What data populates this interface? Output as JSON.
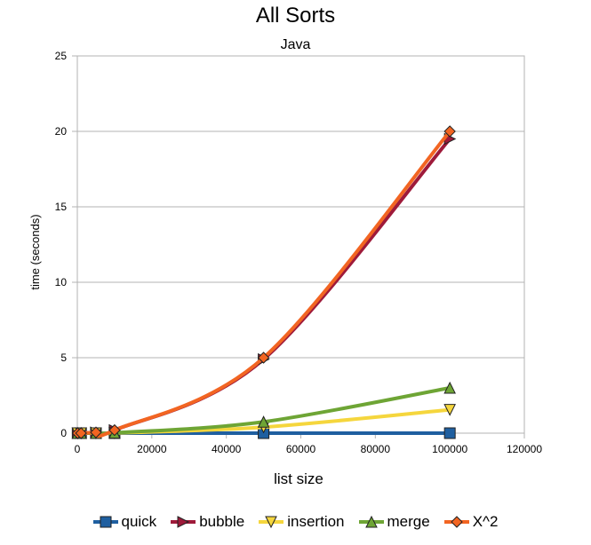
{
  "chart_data": {
    "type": "line",
    "title": "All Sorts",
    "subtitle": "Java",
    "xlabel": "list size",
    "ylabel": "time (seconds)",
    "xlim": [
      0,
      120000
    ],
    "ylim": [
      0,
      25
    ],
    "x_ticks": [
      "0",
      "20000",
      "40000",
      "60000",
      "80000",
      "100000",
      "120000"
    ],
    "y_ticks": [
      "0",
      "5",
      "10",
      "15",
      "20",
      "25"
    ],
    "grid": "horizontal",
    "legend_position": "bottom",
    "x": [
      100,
      1000,
      5000,
      10000,
      50000,
      100000
    ],
    "series": [
      {
        "name": "quick",
        "color": "#1f5fa0",
        "marker": "square",
        "values": [
          0,
          0,
          0,
          0,
          0,
          0
        ]
      },
      {
        "name": "bubble",
        "color": "#9e1a3a",
        "marker": "triangle-right",
        "values": [
          0,
          0,
          0.05,
          0.2,
          4.9,
          19.5
        ]
      },
      {
        "name": "insertion",
        "color": "#f5d63d",
        "marker": "triangle-down",
        "values": [
          0,
          0,
          0,
          0.01,
          0.4,
          1.55
        ]
      },
      {
        "name": "merge",
        "color": "#6ea535",
        "marker": "triangle-up",
        "values": [
          0,
          0,
          0,
          0.02,
          0.75,
          3.0
        ]
      },
      {
        "name": "X^2",
        "color": "#f26522",
        "marker": "diamond",
        "values": [
          0,
          0,
          0.05,
          0.2,
          5.0,
          20.0
        ]
      }
    ]
  }
}
